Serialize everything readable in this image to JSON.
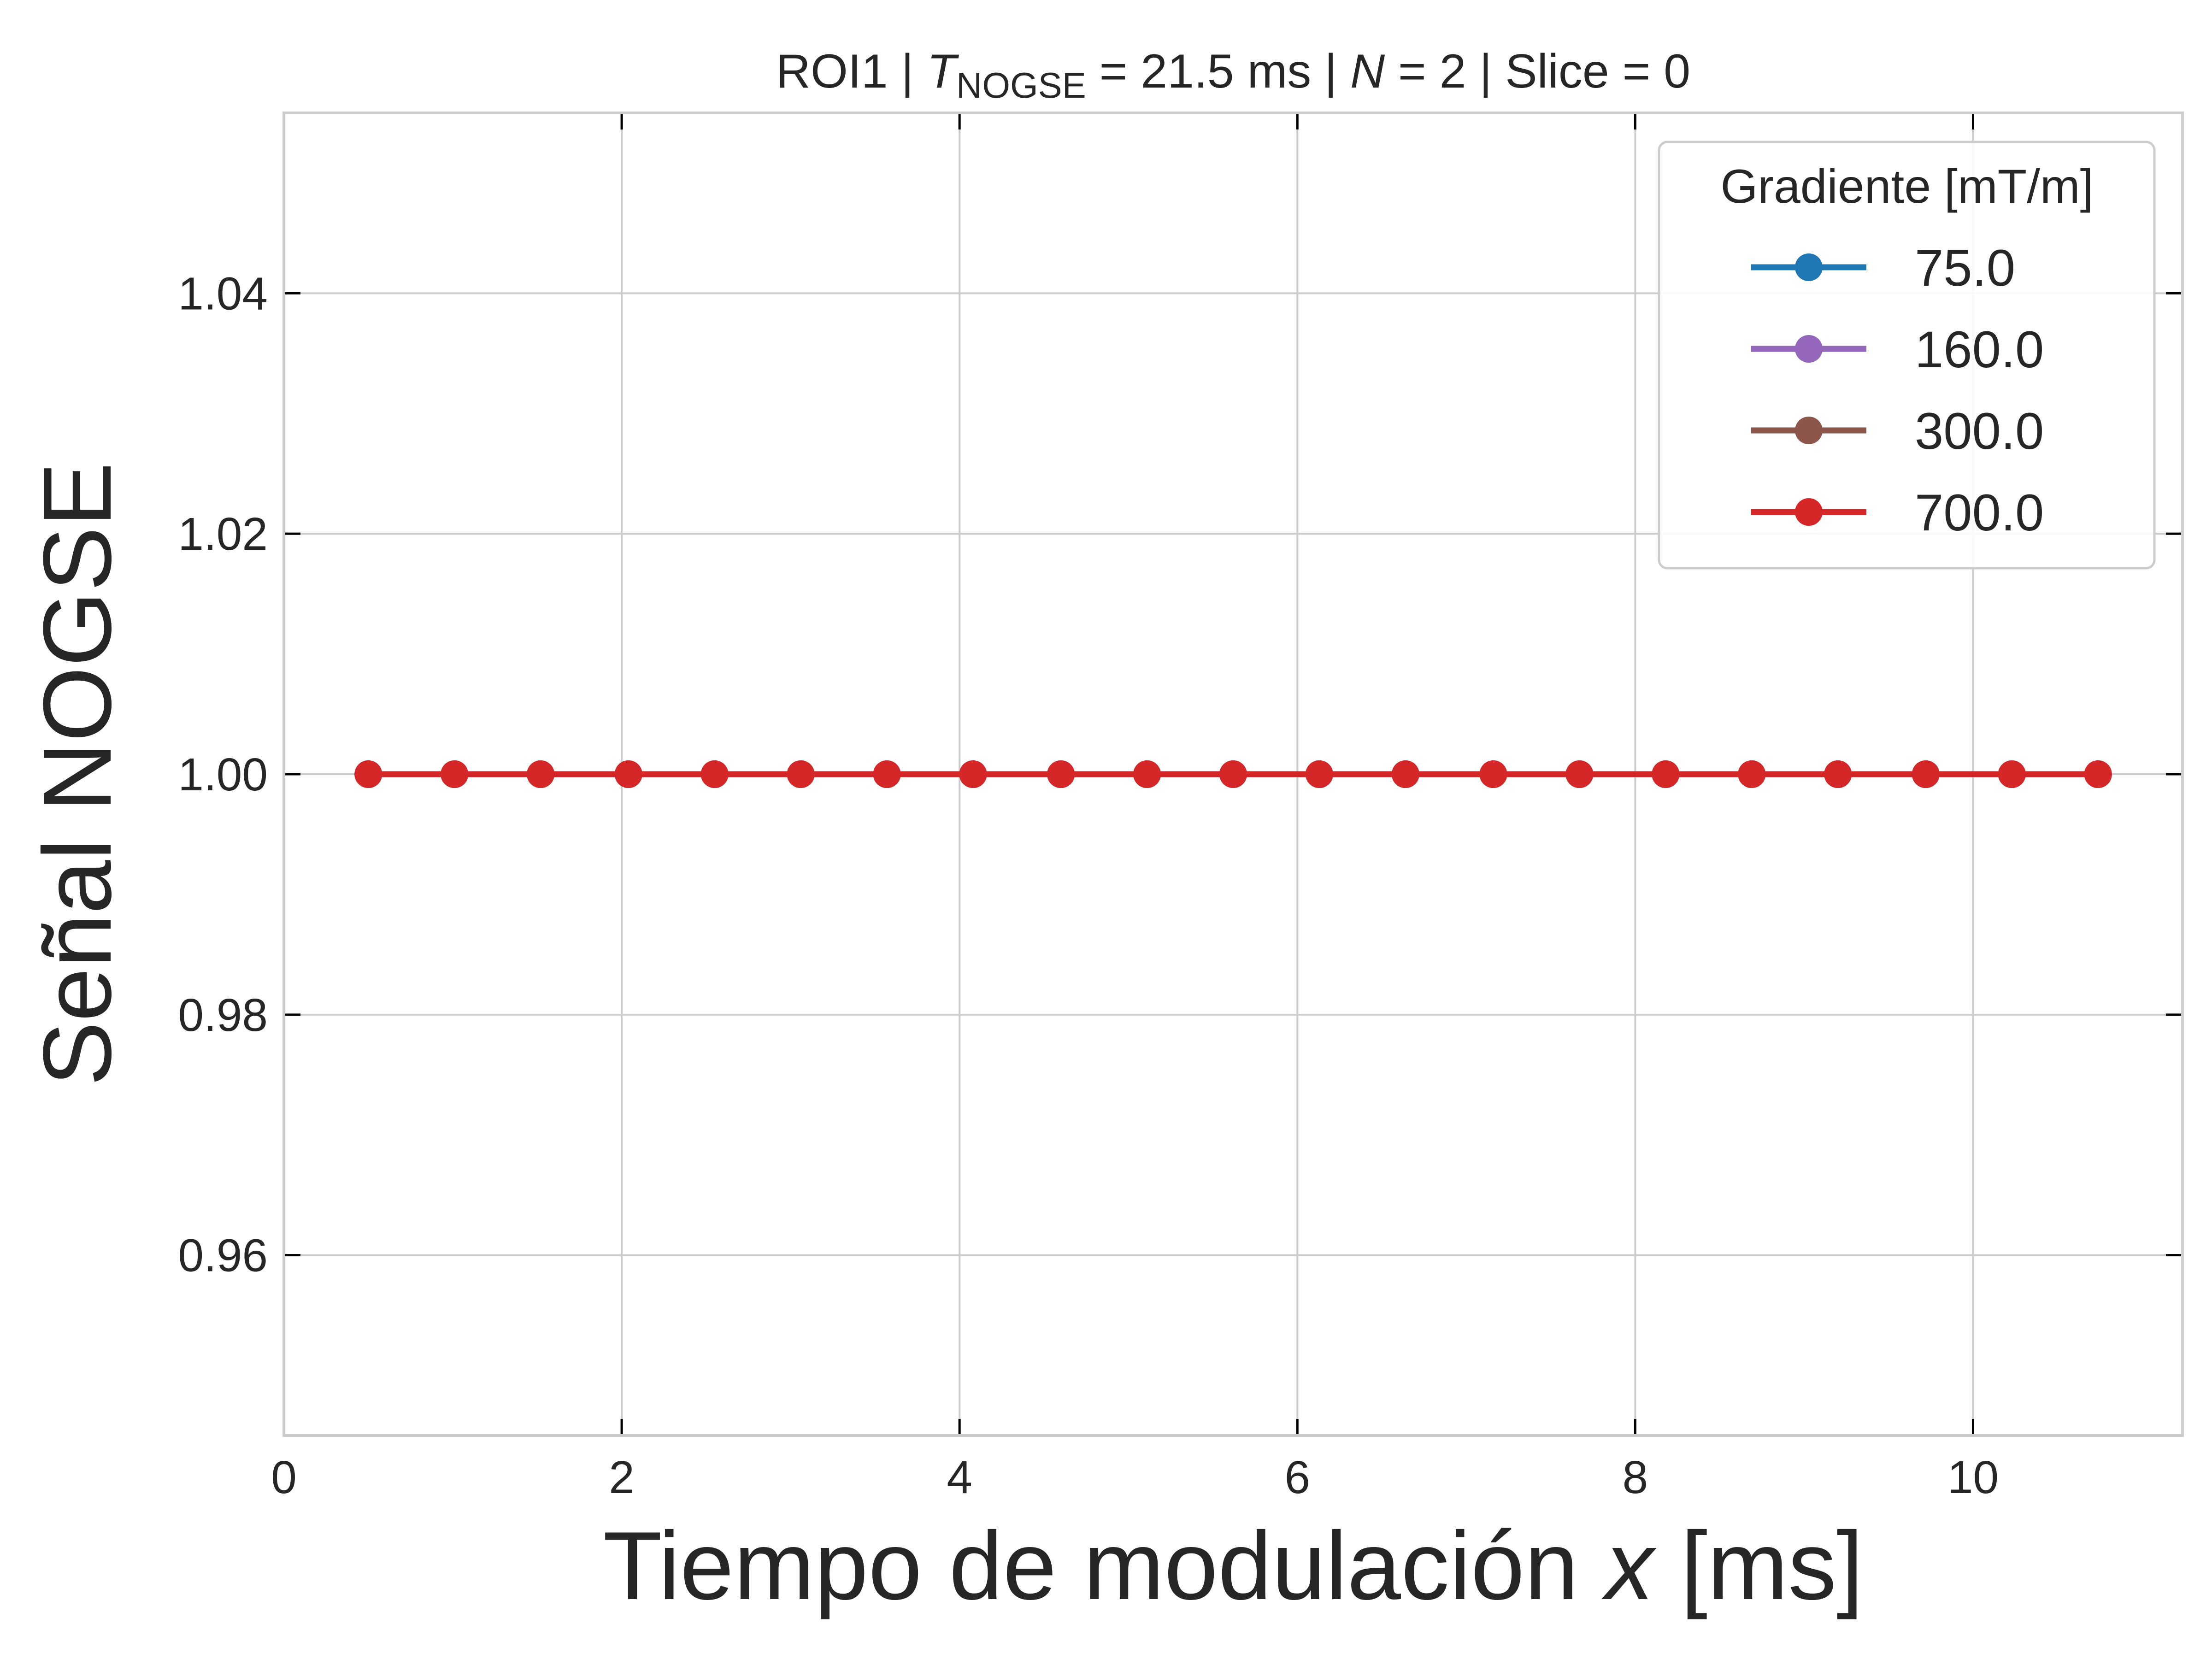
{
  "chart_data": {
    "type": "line",
    "title": {
      "prefix": "ROI1 | ",
      "t_symbol": "T",
      "t_subscript": "NOGSE",
      "t_value": " = 21.5 ms | ",
      "n_symbol": "N",
      "n_value": " = 2 | Slice = 0"
    },
    "xlabel": {
      "text": "Tiempo de modulación ",
      "var": "x",
      "unit": " [ms]"
    },
    "ylabel": "Señal NOGSE",
    "xlim": [
      0,
      11.24
    ],
    "ylim": [
      0.945,
      1.055
    ],
    "xticks": [
      0,
      2,
      4,
      6,
      8,
      10
    ],
    "xtick_labels": [
      "0",
      "2",
      "4",
      "6",
      "8",
      "10"
    ],
    "yticks": [
      0.96,
      0.98,
      1.0,
      1.02,
      1.04
    ],
    "ytick_labels": [
      "0.96",
      "0.98",
      "1.00",
      "1.02",
      "1.04"
    ],
    "grid": true,
    "legend": {
      "title": "Gradiente [mT/m]",
      "placement": "top-right"
    },
    "x": [
      0.5,
      1.01,
      1.52,
      2.04,
      2.55,
      3.06,
      3.57,
      4.08,
      4.6,
      5.11,
      5.62,
      6.13,
      6.64,
      7.16,
      7.67,
      8.18,
      8.69,
      9.2,
      9.72,
      10.23,
      10.74
    ],
    "series": [
      {
        "name": "75.0",
        "color": "#1f77b4",
        "values": [
          1.0,
          1.0,
          1.0,
          1.0,
          1.0,
          1.0,
          1.0,
          1.0,
          1.0,
          1.0,
          1.0,
          1.0,
          1.0,
          1.0,
          1.0,
          1.0,
          1.0,
          1.0,
          1.0,
          1.0,
          1.0
        ]
      },
      {
        "name": "160.0",
        "color": "#9467bd",
        "values": [
          1.0,
          1.0,
          1.0,
          1.0,
          1.0,
          1.0,
          1.0,
          1.0,
          1.0,
          1.0,
          1.0,
          1.0,
          1.0,
          1.0,
          1.0,
          1.0,
          1.0,
          1.0,
          1.0,
          1.0,
          1.0
        ]
      },
      {
        "name": "300.0",
        "color": "#8c564b",
        "values": [
          1.0,
          1.0,
          1.0,
          1.0,
          1.0,
          1.0,
          1.0,
          1.0,
          1.0,
          1.0,
          1.0,
          1.0,
          1.0,
          1.0,
          1.0,
          1.0,
          1.0,
          1.0,
          1.0,
          1.0,
          1.0
        ]
      },
      {
        "name": "700.0",
        "color": "#d62728",
        "values": [
          1.0,
          1.0,
          1.0,
          1.0,
          1.0,
          1.0,
          1.0,
          1.0,
          1.0,
          1.0,
          1.0,
          1.0,
          1.0,
          1.0,
          1.0,
          1.0,
          1.0,
          1.0,
          1.0,
          1.0,
          1.0
        ]
      }
    ]
  }
}
